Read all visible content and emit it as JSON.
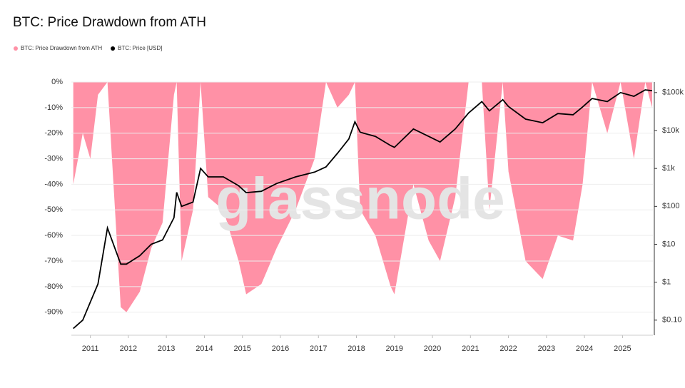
{
  "chart_data": {
    "type": "area_line",
    "title": "BTC: Price Drawdown from ATH",
    "watermark": "glassnode",
    "legend": "top-left",
    "grid": true,
    "x": [
      2010.55,
      2010.8,
      2011.0,
      2011.2,
      2011.45,
      2011.8,
      2011.95,
      2012.3,
      2012.6,
      2012.9,
      2013.2,
      2013.27,
      2013.4,
      2013.7,
      2013.9,
      2014.1,
      2014.5,
      2014.9,
      2015.1,
      2015.5,
      2015.9,
      2016.4,
      2016.9,
      2017.2,
      2017.5,
      2017.8,
      2017.96,
      2018.1,
      2018.5,
      2018.9,
      2019.0,
      2019.5,
      2019.9,
      2020.2,
      2020.6,
      2020.95,
      2021.3,
      2021.5,
      2021.85,
      2022.0,
      2022.45,
      2022.9,
      2023.3,
      2023.7,
      2023.95,
      2024.2,
      2024.6,
      2024.95,
      2025.3,
      2025.6,
      2025.78
    ],
    "xlim": [
      2010.5,
      2025.8
    ],
    "xticks": [
      2011,
      2012,
      2013,
      2014,
      2015,
      2016,
      2017,
      2018,
      2019,
      2020,
      2021,
      2022,
      2023,
      2024,
      2025
    ],
    "ylim": [
      -99,
      0
    ],
    "yticks": [
      {
        "value": 0,
        "label": "0%"
      },
      {
        "value": -10,
        "label": "-10%"
      },
      {
        "value": -20,
        "label": "-20%"
      },
      {
        "value": -30,
        "label": "-30%"
      },
      {
        "value": -40,
        "label": "-40%"
      },
      {
        "value": -50,
        "label": "-50%"
      },
      {
        "value": -60,
        "label": "-60%"
      },
      {
        "value": -70,
        "label": "-70%"
      },
      {
        "value": -80,
        "label": "-80%"
      },
      {
        "value": -90,
        "label": "-90%"
      }
    ],
    "y2lim": [
      0.04,
      190000
    ],
    "y2scale": "log",
    "y2ticks": [
      {
        "value": 0.1,
        "label": "$0.10"
      },
      {
        "value": 1,
        "label": "$1"
      },
      {
        "value": 10,
        "label": "$10"
      },
      {
        "value": 100,
        "label": "$100"
      },
      {
        "value": 1000,
        "label": "$1k"
      },
      {
        "value": 10000,
        "label": "$10k"
      },
      {
        "value": 100000,
        "label": "$100k"
      }
    ],
    "series": [
      {
        "name": "BTC: Price Drawdown from ATH",
        "color": "#ff91a6",
        "axis": "y",
        "values": [
          -40,
          -20,
          -30,
          -5,
          0,
          -88,
          -90,
          -82,
          -65,
          -55,
          -5,
          0,
          -70,
          -50,
          0,
          -45,
          -50,
          -70,
          -83,
          -79,
          -65,
          -50,
          -30,
          0,
          -10,
          -5,
          0,
          -50,
          -60,
          -80,
          -83,
          -40,
          -62,
          -70,
          -45,
          0,
          0,
          -50,
          0,
          -35,
          -70,
          -77,
          -60,
          -62,
          -40,
          0,
          -20,
          0,
          -30,
          0,
          -10
        ]
      },
      {
        "name": "BTC: Price [USD]",
        "color": "#000000",
        "axis": "y2",
        "values": [
          0.06,
          0.1,
          0.3,
          0.9,
          27,
          3,
          3,
          5,
          10,
          13,
          50,
          234,
          100,
          130,
          1000,
          600,
          600,
          350,
          230,
          250,
          400,
          600,
          800,
          1100,
          2500,
          6000,
          17000,
          9000,
          7000,
          4000,
          3600,
          11000,
          7000,
          5000,
          11000,
          29000,
          58000,
          33000,
          65000,
          43000,
          20000,
          16000,
          28000,
          26000,
          42000,
          70000,
          58000,
          100000,
          80000,
          118000,
          112000
        ]
      }
    ]
  }
}
